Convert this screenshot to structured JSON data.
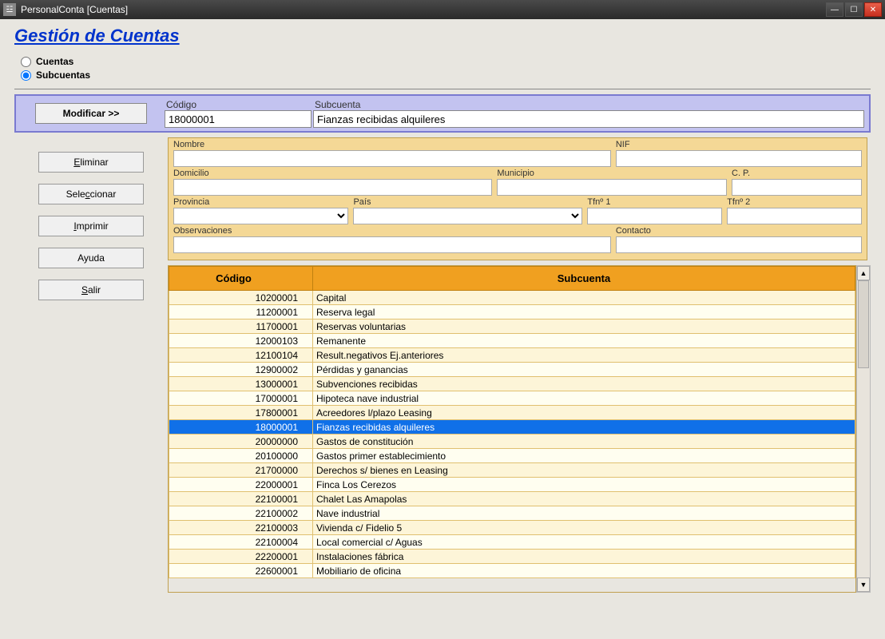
{
  "window": {
    "title": "PersonalConta [Cuentas]"
  },
  "page": {
    "title": "Gestión de Cuentas"
  },
  "radios": {
    "cuentas": "Cuentas",
    "subcuentas": "Subcuentas",
    "selected": "subcuentas"
  },
  "header": {
    "modify_btn": "Modificar >>",
    "codigo_label": "Código",
    "subcuenta_label": "Subcuenta",
    "codigo_value": "18000001",
    "subcuenta_value": "Fianzas recibidas alquileres"
  },
  "side_buttons": {
    "eliminar": "Eliminar",
    "seleccionar": "Seleccionar",
    "imprimir": "Imprimir",
    "ayuda": "Ayuda",
    "salir": "Salir"
  },
  "fields": {
    "nombre": "Nombre",
    "nif": "NIF",
    "domicilio": "Domicilio",
    "municipio": "Municipio",
    "cp": "C. P.",
    "provincia": "Provincia",
    "pais": "País",
    "tfn1": "Tfnº 1",
    "tfn2": "Tfnº 2",
    "observaciones": "Observaciones",
    "contacto": "Contacto"
  },
  "table": {
    "col_codigo": "Código",
    "col_subcuenta": "Subcuenta",
    "selected_codigo": "18000001",
    "rows": [
      {
        "codigo": "10200001",
        "sub": "Capital"
      },
      {
        "codigo": "11200001",
        "sub": "Reserva legal"
      },
      {
        "codigo": "11700001",
        "sub": "Reservas voluntarias"
      },
      {
        "codigo": "12000103",
        "sub": "Remanente"
      },
      {
        "codigo": "12100104",
        "sub": "Result.negativos Ej.anteriores"
      },
      {
        "codigo": "12900002",
        "sub": "Pérdidas y ganancias"
      },
      {
        "codigo": "13000001",
        "sub": "Subvenciones recibidas"
      },
      {
        "codigo": "17000001",
        "sub": "Hipoteca nave industrial"
      },
      {
        "codigo": "17800001",
        "sub": "Acreedores l/plazo Leasing"
      },
      {
        "codigo": "18000001",
        "sub": "Fianzas recibidas alquileres"
      },
      {
        "codigo": "20000000",
        "sub": "Gastos de constitución"
      },
      {
        "codigo": "20100000",
        "sub": "Gastos primer establecimiento"
      },
      {
        "codigo": "21700000",
        "sub": "Derechos s/ bienes en Leasing"
      },
      {
        "codigo": "22000001",
        "sub": "Finca Los Cerezos"
      },
      {
        "codigo": "22100001",
        "sub": "Chalet Las Amapolas"
      },
      {
        "codigo": "22100002",
        "sub": "Nave industrial"
      },
      {
        "codigo": "22100003",
        "sub": "Vivienda c/ Fidelio 5"
      },
      {
        "codigo": "22100004",
        "sub": "Local comercial c/ Aguas"
      },
      {
        "codigo": "22200001",
        "sub": "Instalaciones fábrica"
      },
      {
        "codigo": "22600001",
        "sub": "Mobiliario de oficina"
      }
    ]
  },
  "colors": {
    "header_bg": "#c3c3f0",
    "header_border": "#7a7ad0",
    "detail_bg": "#f4d896",
    "table_header_bg": "#f0a020",
    "row_bg": "#fdf5d8",
    "row_alt_bg": "#fffef0",
    "selected_bg": "#1070e8",
    "title_color": "#0033cc"
  }
}
